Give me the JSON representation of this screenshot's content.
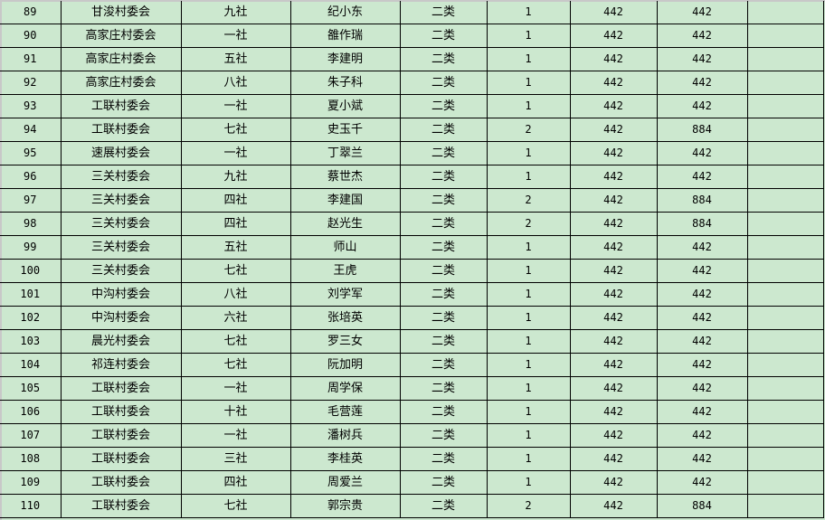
{
  "colors": {
    "cell_background": "#cce8cf",
    "grid": "#000000"
  },
  "rows": [
    {
      "no": "89",
      "village": "甘浚村委会",
      "group": "九社",
      "name": "纪小东",
      "type": "二类",
      "count": "1",
      "amount": "442",
      "total": "442"
    },
    {
      "no": "90",
      "village": "高家庄村委会",
      "group": "一社",
      "name": "雒作瑞",
      "type": "二类",
      "count": "1",
      "amount": "442",
      "total": "442"
    },
    {
      "no": "91",
      "village": "高家庄村委会",
      "group": "五社",
      "name": "李建明",
      "type": "二类",
      "count": "1",
      "amount": "442",
      "total": "442"
    },
    {
      "no": "92",
      "village": "高家庄村委会",
      "group": "八社",
      "name": "朱子科",
      "type": "二类",
      "count": "1",
      "amount": "442",
      "total": "442"
    },
    {
      "no": "93",
      "village": "工联村委会",
      "group": "一社",
      "name": "夏小斌",
      "type": "二类",
      "count": "1",
      "amount": "442",
      "total": "442"
    },
    {
      "no": "94",
      "village": "工联村委会",
      "group": "七社",
      "name": "史玉千",
      "type": "二类",
      "count": "2",
      "amount": "442",
      "total": "884"
    },
    {
      "no": "95",
      "village": "速展村委会",
      "group": "一社",
      "name": "丁翠兰",
      "type": "二类",
      "count": "1",
      "amount": "442",
      "total": "442"
    },
    {
      "no": "96",
      "village": "三关村委会",
      "group": "九社",
      "name": "蔡世杰",
      "type": "二类",
      "count": "1",
      "amount": "442",
      "total": "442"
    },
    {
      "no": "97",
      "village": "三关村委会",
      "group": "四社",
      "name": "李建国",
      "type": "二类",
      "count": "2",
      "amount": "442",
      "total": "884"
    },
    {
      "no": "98",
      "village": "三关村委会",
      "group": "四社",
      "name": "赵光生",
      "type": "二类",
      "count": "2",
      "amount": "442",
      "total": "884"
    },
    {
      "no": "99",
      "village": "三关村委会",
      "group": "五社",
      "name": "师山",
      "type": "二类",
      "count": "1",
      "amount": "442",
      "total": "442"
    },
    {
      "no": "100",
      "village": "三关村委会",
      "group": "七社",
      "name": "王虎",
      "type": "二类",
      "count": "1",
      "amount": "442",
      "total": "442"
    },
    {
      "no": "101",
      "village": "中沟村委会",
      "group": "八社",
      "name": "刘学军",
      "type": "二类",
      "count": "1",
      "amount": "442",
      "total": "442"
    },
    {
      "no": "102",
      "village": "中沟村委会",
      "group": "六社",
      "name": "张培英",
      "type": "二类",
      "count": "1",
      "amount": "442",
      "total": "442"
    },
    {
      "no": "103",
      "village": "晨光村委会",
      "group": "七社",
      "name": "罗三女",
      "type": "二类",
      "count": "1",
      "amount": "442",
      "total": "442"
    },
    {
      "no": "104",
      "village": "祁连村委会",
      "group": "七社",
      "name": "阮加明",
      "type": "二类",
      "count": "1",
      "amount": "442",
      "total": "442"
    },
    {
      "no": "105",
      "village": "工联村委会",
      "group": "一社",
      "name": "周学保",
      "type": "二类",
      "count": "1",
      "amount": "442",
      "total": "442"
    },
    {
      "no": "106",
      "village": "工联村委会",
      "group": "十社",
      "name": "毛营莲",
      "type": "二类",
      "count": "1",
      "amount": "442",
      "total": "442"
    },
    {
      "no": "107",
      "village": "工联村委会",
      "group": "一社",
      "name": "潘树兵",
      "type": "二类",
      "count": "1",
      "amount": "442",
      "total": "442"
    },
    {
      "no": "108",
      "village": "工联村委会",
      "group": "三社",
      "name": "李桂英",
      "type": "二类",
      "count": "1",
      "amount": "442",
      "total": "442"
    },
    {
      "no": "109",
      "village": "工联村委会",
      "group": "四社",
      "name": "周爱兰",
      "type": "二类",
      "count": "1",
      "amount": "442",
      "total": "442"
    },
    {
      "no": "110",
      "village": "工联村委会",
      "group": "七社",
      "name": "郭宗贵",
      "type": "二类",
      "count": "2",
      "amount": "442",
      "total": "884"
    }
  ]
}
